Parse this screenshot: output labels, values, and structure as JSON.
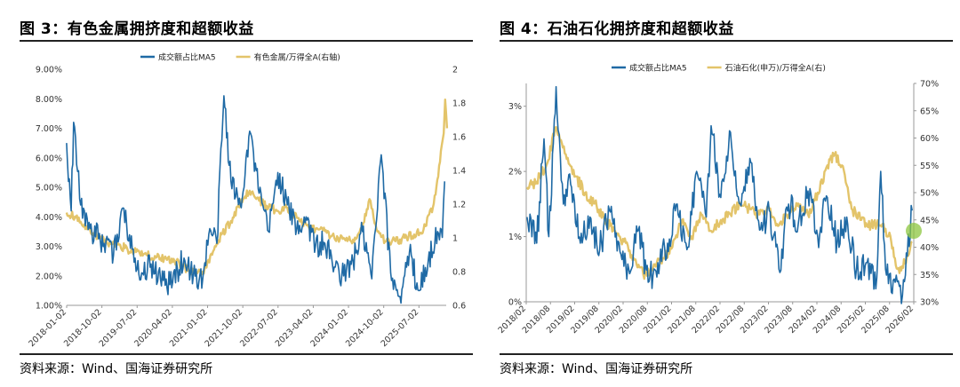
{
  "source_text": "资料来源：Wind、国海证券研究所",
  "colors": {
    "blue": "#1f6aa5",
    "gold": "#e3c46a",
    "axis": "#999999",
    "marker": "#8cc63f"
  },
  "chart_data": [
    {
      "type": "line",
      "title": "图 3：有色金属拥挤度和超额收益",
      "x_ticks": [
        "2018-01-02",
        "2018-10-02",
        "2019-07-02",
        "2020-04-02",
        "2021-01-02",
        "2021-10-02",
        "2022-07-02",
        "2023-04-02",
        "2024-01-02",
        "2024-10-02",
        "2025-07-02"
      ],
      "x_range": [
        "2018-01-02",
        "2026-02-01"
      ],
      "y_left": {
        "ticks": [
          "1.00%",
          "2.00%",
          "3.00%",
          "4.00%",
          "5.00%",
          "6.00%",
          "7.00%",
          "8.00%",
          "9.00%"
        ],
        "range": [
          1,
          9
        ]
      },
      "y_right": {
        "ticks": [
          "0.6",
          "0.8",
          "1",
          "1.2",
          "1.4",
          "1.6",
          "1.8",
          "2"
        ],
        "range": [
          0.6,
          2.0
        ]
      },
      "legend_position": "top",
      "series": [
        {
          "name": "成交额占比MA5",
          "axis": "left",
          "color": "#1f6aa5",
          "anchors": [
            [
              2018.0,
              6.5
            ],
            [
              2018.1,
              4.2
            ],
            [
              2018.15,
              7.2
            ],
            [
              2018.3,
              4.4
            ],
            [
              2018.5,
              3.6
            ],
            [
              2018.8,
              3.1
            ],
            [
              2019.0,
              2.7
            ],
            [
              2019.2,
              4.3
            ],
            [
              2019.4,
              2.9
            ],
            [
              2019.6,
              2.1
            ],
            [
              2019.8,
              2.4
            ],
            [
              2020.0,
              1.9
            ],
            [
              2020.2,
              1.7
            ],
            [
              2020.5,
              2.6
            ],
            [
              2020.7,
              2.0
            ],
            [
              2020.9,
              1.9
            ],
            [
              2021.05,
              3.6
            ],
            [
              2021.2,
              3.1
            ],
            [
              2021.35,
              8.1
            ],
            [
              2021.5,
              5.2
            ],
            [
              2021.7,
              4.4
            ],
            [
              2021.9,
              6.9
            ],
            [
              2022.1,
              4.8
            ],
            [
              2022.3,
              3.5
            ],
            [
              2022.5,
              5.5
            ],
            [
              2022.7,
              4.4
            ],
            [
              2022.9,
              3.6
            ],
            [
              2023.1,
              4.0
            ],
            [
              2023.3,
              3.0
            ],
            [
              2023.5,
              3.1
            ],
            [
              2023.7,
              2.3
            ],
            [
              2023.9,
              2.0
            ],
            [
              2024.1,
              2.5
            ],
            [
              2024.3,
              3.5
            ],
            [
              2024.5,
              1.9
            ],
            [
              2024.7,
              6.1
            ],
            [
              2024.9,
              2.1
            ],
            [
              2025.1,
              1.3
            ],
            [
              2025.3,
              2.8
            ],
            [
              2025.5,
              1.5
            ],
            [
              2025.7,
              2.5
            ],
            [
              2025.9,
              3.5
            ],
            [
              2026.0,
              3.3
            ],
            [
              2026.05,
              5.2
            ]
          ]
        },
        {
          "name": "有色金属/万得全A(右轴)",
          "axis": "right",
          "color": "#e3c46a",
          "anchors": [
            [
              2018.0,
              1.15
            ],
            [
              2018.2,
              1.12
            ],
            [
              2018.5,
              1.05
            ],
            [
              2018.8,
              0.98
            ],
            [
              2019.1,
              0.96
            ],
            [
              2019.4,
              0.92
            ],
            [
              2019.7,
              0.9
            ],
            [
              2020.0,
              0.88
            ],
            [
              2020.3,
              0.86
            ],
            [
              2020.6,
              0.81
            ],
            [
              2020.9,
              0.8
            ],
            [
              2021.1,
              0.9
            ],
            [
              2021.3,
              1.02
            ],
            [
              2021.5,
              1.1
            ],
            [
              2021.7,
              1.2
            ],
            [
              2021.9,
              1.28
            ],
            [
              2022.1,
              1.22
            ],
            [
              2022.3,
              1.18
            ],
            [
              2022.5,
              1.16
            ],
            [
              2022.7,
              1.18
            ],
            [
              2022.9,
              1.12
            ],
            [
              2023.1,
              1.08
            ],
            [
              2023.3,
              1.05
            ],
            [
              2023.5,
              1.04
            ],
            [
              2023.7,
              1.0
            ],
            [
              2023.9,
              1.0
            ],
            [
              2024.1,
              0.99
            ],
            [
              2024.3,
              1.07
            ],
            [
              2024.45,
              1.23
            ],
            [
              2024.6,
              1.05
            ],
            [
              2024.8,
              0.98
            ],
            [
              2025.0,
              0.98
            ],
            [
              2025.2,
              1.0
            ],
            [
              2025.4,
              1.02
            ],
            [
              2025.6,
              1.05
            ],
            [
              2025.8,
              1.18
            ],
            [
              2025.95,
              1.45
            ],
            [
              2026.03,
              1.62
            ],
            [
              2026.06,
              1.82
            ],
            [
              2026.1,
              1.65
            ]
          ]
        }
      ]
    },
    {
      "type": "line",
      "title": "图 4：石油石化拥挤度和超额收益",
      "x_ticks": [
        "2018/02",
        "2018/08",
        "2019/02",
        "2019/08",
        "2020/02",
        "2020/08",
        "2021/02",
        "2021/08",
        "2022/02",
        "2022/08",
        "2023/02",
        "2023/08",
        "2024/02",
        "2024/08",
        "2025/02",
        "2025/08",
        "2026/02"
      ],
      "x_range": [
        "2018/02",
        "2026/02"
      ],
      "y_left": {
        "ticks": [
          "0%",
          "1%",
          "2%",
          "3%"
        ],
        "range": [
          0,
          3.35
        ]
      },
      "y_right": {
        "ticks": [
          "30%",
          "35%",
          "40%",
          "45%",
          "50%",
          "55%",
          "60%",
          "65%",
          "70%"
        ],
        "range": [
          30,
          70
        ]
      },
      "legend_position": "top",
      "series": [
        {
          "name": "成交额占比MA5",
          "axis": "left",
          "color": "#1f6aa5",
          "anchors": [
            [
              2018.1,
              1.3
            ],
            [
              2018.3,
              0.9
            ],
            [
              2018.45,
              2.5
            ],
            [
              2018.55,
              1.0
            ],
            [
              2018.7,
              3.3
            ],
            [
              2018.85,
              1.5
            ],
            [
              2019.0,
              1.8
            ],
            [
              2019.2,
              0.9
            ],
            [
              2019.4,
              1.3
            ],
            [
              2019.6,
              0.8
            ],
            [
              2019.8,
              1.4
            ],
            [
              2020.0,
              0.9
            ],
            [
              2020.2,
              0.5
            ],
            [
              2020.4,
              1.1
            ],
            [
              2020.6,
              0.3
            ],
            [
              2020.8,
              0.6
            ],
            [
              2021.0,
              0.9
            ],
            [
              2021.2,
              1.5
            ],
            [
              2021.4,
              0.8
            ],
            [
              2021.6,
              2.0
            ],
            [
              2021.8,
              1.3
            ],
            [
              2021.9,
              2.7
            ],
            [
              2022.1,
              1.6
            ],
            [
              2022.3,
              2.6
            ],
            [
              2022.5,
              1.5
            ],
            [
              2022.7,
              2.2
            ],
            [
              2022.9,
              1.1
            ],
            [
              2023.1,
              1.4
            ],
            [
              2023.3,
              0.5
            ],
            [
              2023.5,
              1.5
            ],
            [
              2023.7,
              1.2
            ],
            [
              2023.9,
              1.7
            ],
            [
              2024.1,
              1.0
            ],
            [
              2024.3,
              1.6
            ],
            [
              2024.5,
              0.9
            ],
            [
              2024.7,
              1.3
            ],
            [
              2024.9,
              0.5
            ],
            [
              2025.1,
              0.6
            ],
            [
              2025.3,
              0.2
            ],
            [
              2025.4,
              2.0
            ],
            [
              2025.5,
              0.5
            ],
            [
              2025.7,
              0.3
            ],
            [
              2025.85,
              0.1
            ],
            [
              2025.95,
              0.7
            ],
            [
              2026.05,
              1.4
            ]
          ]
        },
        {
          "name": "石油石化(申万)/万得全A(右)",
          "axis": "right",
          "color": "#e3c46a",
          "anchors": [
            [
              2018.1,
              51
            ],
            [
              2018.3,
              52
            ],
            [
              2018.5,
              55
            ],
            [
              2018.7,
              62
            ],
            [
              2018.9,
              57
            ],
            [
              2019.1,
              53
            ],
            [
              2019.3,
              50
            ],
            [
              2019.5,
              48
            ],
            [
              2019.7,
              45
            ],
            [
              2019.9,
              43
            ],
            [
              2020.1,
              41
            ],
            [
              2020.3,
              38
            ],
            [
              2020.5,
              35
            ],
            [
              2020.7,
              36
            ],
            [
              2020.9,
              38
            ],
            [
              2021.1,
              40
            ],
            [
              2021.3,
              45
            ],
            [
              2021.5,
              42
            ],
            [
              2021.7,
              46
            ],
            [
              2021.9,
              43
            ],
            [
              2022.1,
              45
            ],
            [
              2022.3,
              46
            ],
            [
              2022.5,
              48
            ],
            [
              2022.7,
              47
            ],
            [
              2022.9,
              46
            ],
            [
              2023.1,
              47
            ],
            [
              2023.3,
              44
            ],
            [
              2023.5,
              46
            ],
            [
              2023.7,
              48
            ],
            [
              2023.9,
              46
            ],
            [
              2024.1,
              50
            ],
            [
              2024.3,
              55
            ],
            [
              2024.45,
              57
            ],
            [
              2024.6,
              55
            ],
            [
              2024.8,
              47
            ],
            [
              2025.0,
              45
            ],
            [
              2025.2,
              44
            ],
            [
              2025.4,
              44
            ],
            [
              2025.6,
              42
            ],
            [
              2025.75,
              36
            ],
            [
              2025.9,
              37
            ],
            [
              2026.05,
              41
            ]
          ]
        }
      ],
      "marker": {
        "x": "2026/02",
        "y": 43,
        "axis": "right"
      }
    }
  ]
}
